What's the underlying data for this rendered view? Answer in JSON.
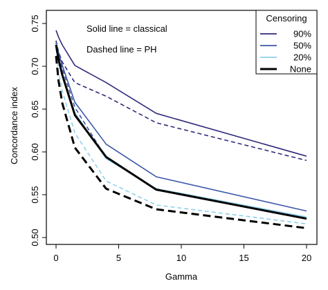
{
  "chart_data": {
    "type": "line",
    "title": "",
    "xlabel": "Gamma",
    "ylabel": "Concordance index",
    "xlim": [
      0,
      20
    ],
    "ylim": [
      0.5,
      0.75
    ],
    "x_ticks": [
      0,
      5,
      10,
      15,
      20
    ],
    "y_ticks": [
      0.5,
      0.55,
      0.6,
      0.65,
      0.7,
      0.75
    ],
    "y_tick_labels": [
      "0.50",
      "0.55",
      "0.60",
      "0.65",
      "0.70",
      "0.75"
    ],
    "grid": false,
    "legend": {
      "title": "Censoring",
      "placement": "top-right",
      "entries": [
        "90%",
        "50%",
        "20%",
        "None"
      ]
    },
    "annotations": [
      "Solid line = classical",
      "Dashed line = PH"
    ],
    "colors": {
      "90%": "#2e2a7a",
      "50%": "#3a56a8",
      "20%": "#8fd0ea",
      "None": "#000000"
    },
    "x": [
      0,
      0.2,
      0.5,
      1.5,
      4,
      8,
      20
    ],
    "series": [
      {
        "name": "90%",
        "line": "solid",
        "values": [
          0.742,
          0.734,
          0.725,
          0.701,
          0.681,
          0.645,
          0.595
        ]
      },
      {
        "name": "90%",
        "line": "dashed",
        "values": [
          0.73,
          0.717,
          0.705,
          0.681,
          0.665,
          0.634,
          0.59
        ]
      },
      {
        "name": "50%",
        "line": "solid",
        "values": [
          0.728,
          0.716,
          0.701,
          0.658,
          0.609,
          0.571,
          0.531
        ]
      },
      {
        "name": "50%",
        "line": "dashed",
        "values": [
          0.727,
          0.712,
          0.697,
          0.652,
          0.593,
          0.556,
          0.523
        ]
      },
      {
        "name": "20%",
        "line": "solid",
        "values": [
          0.726,
          0.709,
          0.691,
          0.646,
          0.592,
          0.557,
          0.524
        ]
      },
      {
        "name": "20%",
        "line": "dashed",
        "values": [
          0.721,
          0.694,
          0.671,
          0.622,
          0.566,
          0.538,
          0.516
        ]
      },
      {
        "name": "None",
        "line": "solid",
        "values": [
          0.725,
          0.708,
          0.69,
          0.643,
          0.594,
          0.556,
          0.522
        ]
      },
      {
        "name": "None",
        "line": "dashed",
        "values": [
          0.712,
          0.683,
          0.657,
          0.605,
          0.557,
          0.533,
          0.511
        ]
      }
    ]
  }
}
